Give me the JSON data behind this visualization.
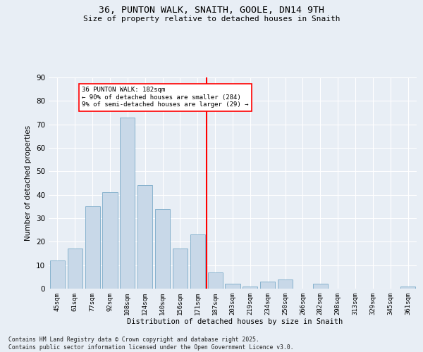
{
  "title": "36, PUNTON WALK, SNAITH, GOOLE, DN14 9TH",
  "subtitle": "Size of property relative to detached houses in Snaith",
  "xlabel": "Distribution of detached houses by size in Snaith",
  "ylabel": "Number of detached properties",
  "categories": [
    "45sqm",
    "61sqm",
    "77sqm",
    "92sqm",
    "108sqm",
    "124sqm",
    "140sqm",
    "156sqm",
    "171sqm",
    "187sqm",
    "203sqm",
    "219sqm",
    "234sqm",
    "250sqm",
    "266sqm",
    "282sqm",
    "298sqm",
    "313sqm",
    "329sqm",
    "345sqm",
    "361sqm"
  ],
  "values": [
    12,
    17,
    35,
    41,
    73,
    44,
    34,
    17,
    23,
    7,
    2,
    1,
    3,
    4,
    0,
    2,
    0,
    0,
    0,
    0,
    1
  ],
  "bar_color": "#c8d8e8",
  "bar_edge_color": "#7aaac8",
  "vline_x_index": 8.5,
  "vline_color": "red",
  "annotation_text": "36 PUNTON WALK: 182sqm\n← 90% of detached houses are smaller (284)\n9% of semi-detached houses are larger (29) →",
  "annotation_box_color": "white",
  "annotation_box_edge_color": "red",
  "ylim": [
    0,
    90
  ],
  "yticks": [
    0,
    10,
    20,
    30,
    40,
    50,
    60,
    70,
    80,
    90
  ],
  "background_color": "#e8eef5",
  "grid_color": "white",
  "footer": "Contains HM Land Registry data © Crown copyright and database right 2025.\nContains public sector information licensed under the Open Government Licence v3.0."
}
